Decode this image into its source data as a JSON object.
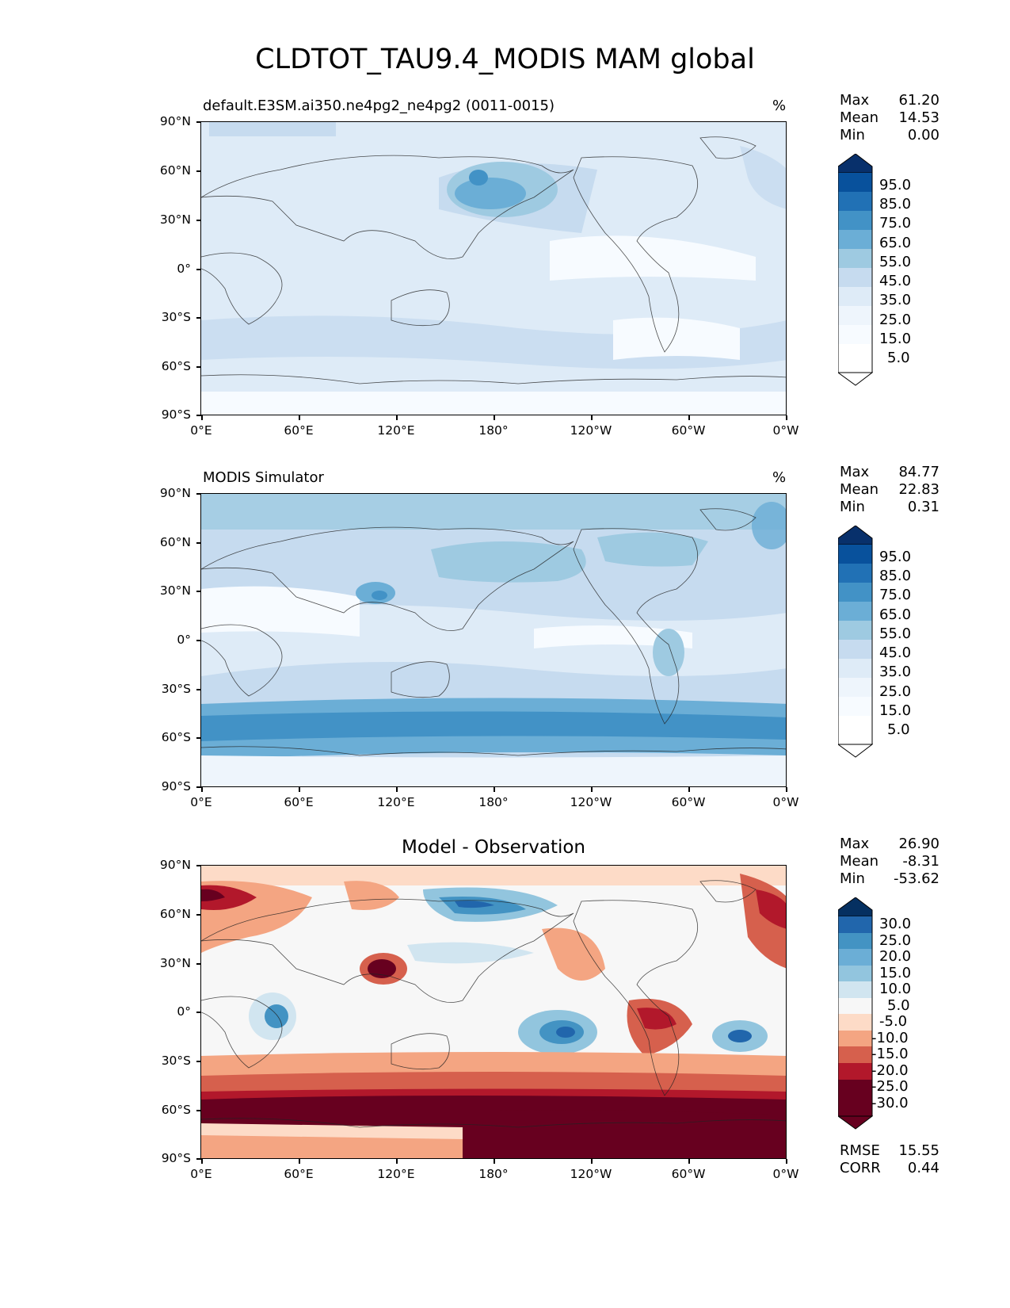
{
  "figure": {
    "title": "CLDTOT_TAU9.4_MODIS MAM global"
  },
  "axes": {
    "lat_labels": [
      "90°N",
      "60°N",
      "30°N",
      "0°",
      "30°S",
      "60°S",
      "90°S"
    ],
    "lon_labels": [
      "0°E",
      "60°E",
      "120°E",
      "180°",
      "120°W",
      "60°W",
      "0°W"
    ]
  },
  "panels": [
    {
      "title": "default.E3SM.ai350.ne4pg2_ne4pg2 (0011-0015)",
      "unit": "%",
      "stats": {
        "max_label": "Max",
        "max": "61.20",
        "mean_label": "Mean",
        "mean": "14.53",
        "min_label": "Min",
        "min": "0.00"
      },
      "colorbar": {
        "labels": [
          "95.0",
          "85.0",
          "75.0",
          "65.0",
          "55.0",
          "45.0",
          "35.0",
          "25.0",
          "15.0",
          "5.0"
        ],
        "colors": [
          "#08306b",
          "#08519c",
          "#2171b5",
          "#4292c6",
          "#6baed6",
          "#9ecae1",
          "#c6dbef",
          "#deebf7",
          "#f7fbff",
          "#ffffff"
        ]
      }
    },
    {
      "title": "MODIS Simulator",
      "unit": "%",
      "stats": {
        "max_label": "Max",
        "max": "84.77",
        "mean_label": "Mean",
        "mean": "22.83",
        "min_label": "Min",
        "min": "0.31"
      },
      "colorbar": {
        "labels": [
          "95.0",
          "85.0",
          "75.0",
          "65.0",
          "55.0",
          "45.0",
          "35.0",
          "25.0",
          "15.0",
          "5.0"
        ],
        "colors": [
          "#08306b",
          "#08519c",
          "#2171b5",
          "#4292c6",
          "#6baed6",
          "#9ecae1",
          "#c6dbef",
          "#deebf7",
          "#f7fbff",
          "#ffffff"
        ]
      }
    },
    {
      "title": "Model - Observation",
      "unit": "",
      "stats": {
        "max_label": "Max",
        "max": "26.90",
        "mean_label": "Mean",
        "mean": "-8.31",
        "min_label": "Min",
        "min": "-53.62"
      },
      "colorbar": {
        "labels": [
          "30.0",
          "25.0",
          "20.0",
          "15.0",
          "10.0",
          "5.0",
          "-5.0",
          "-10.0",
          "-15.0",
          "-20.0",
          "-25.0",
          "-30.0"
        ],
        "colors": [
          "#053061",
          "#2166ac",
          "#4393c3",
          "#92c5de",
          "#d1e5f0",
          "#f7f7f7",
          "#fddbc7",
          "#f4a582",
          "#d6604d",
          "#b2182b",
          "#67001f"
        ]
      },
      "metrics": {
        "rmse_label": "RMSE",
        "rmse": "15.55",
        "corr_label": "CORR",
        "corr": "0.44"
      }
    }
  ]
}
